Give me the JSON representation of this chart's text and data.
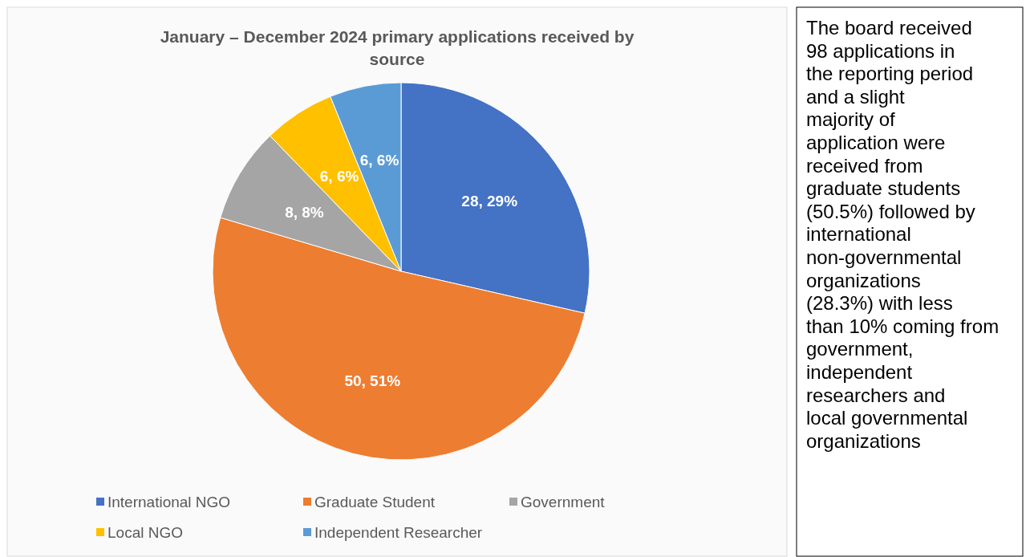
{
  "chart_data": {
    "type": "pie",
    "title": "January – December 2024 primary applications received by source",
    "categories": [
      "International NGO",
      "Graduate Student",
      "Government",
      "Local NGO",
      "Independent Researcher"
    ],
    "values": [
      28,
      50,
      8,
      6,
      6
    ],
    "colors": [
      "#4472c4",
      "#ed7d31",
      "#a5a5a5",
      "#ffc000",
      "#5b9bd5"
    ],
    "value_labels": [
      "28, 29%",
      "50, 51%",
      "8, 8%",
      "6, 6%",
      "6, 6%"
    ],
    "legend": "bottom",
    "annotations": [
      "The board received 98 applications in the reporting period and a slight majority of application were received from graduate students (50.5%) followed by international non-governmental organizations (28.3%) with less than 10% coming from government, independent researchers and local governmental organizations"
    ]
  }
}
